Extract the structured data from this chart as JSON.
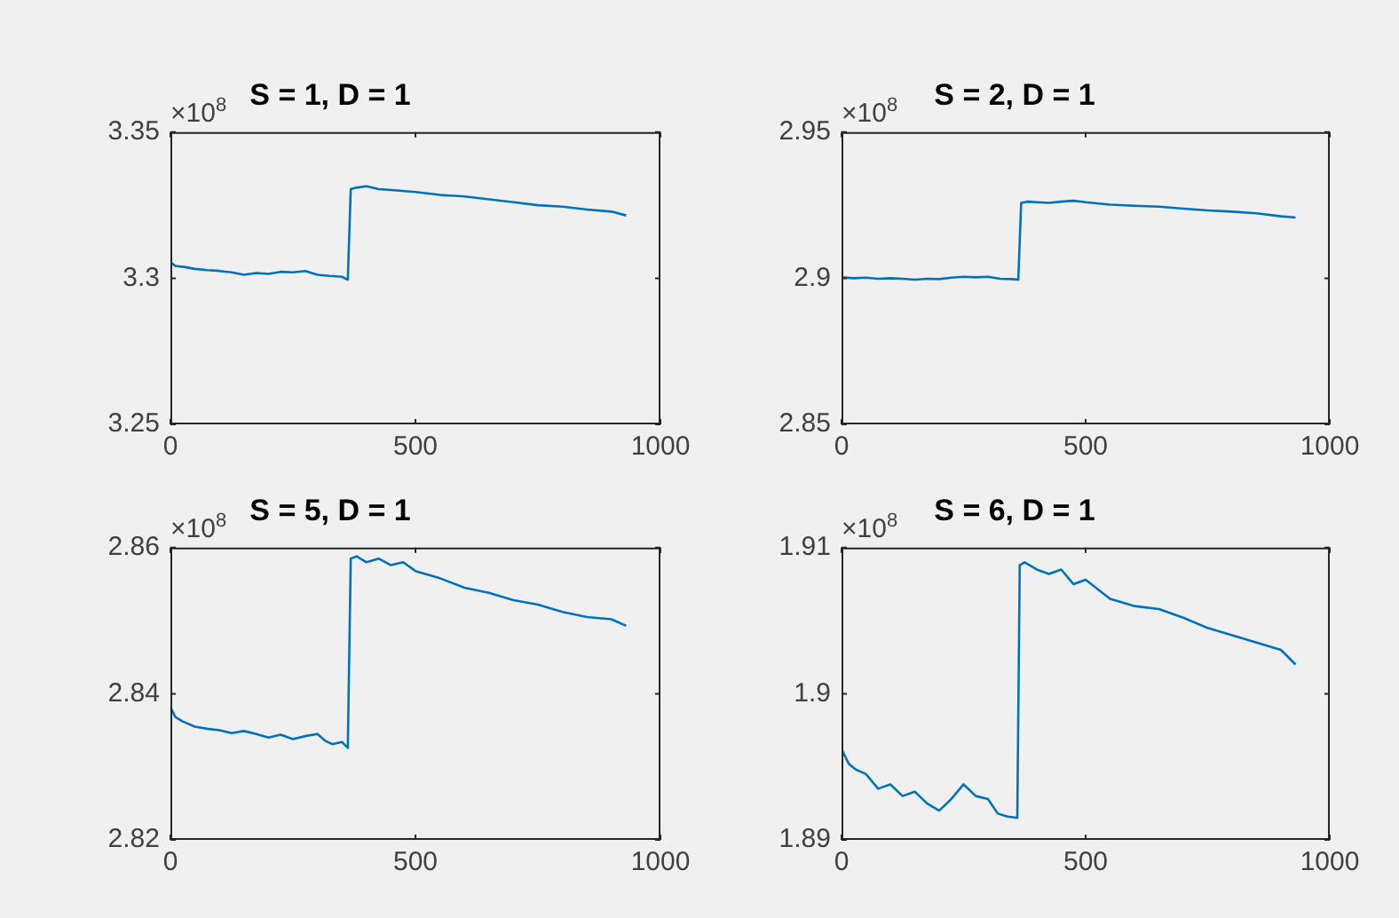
{
  "chart_data": [
    {
      "type": "line",
      "title": "S = 1, D = 1",
      "annotations": [
        "×10$^{8}$"
      ],
      "xlim": [
        0,
        1000
      ],
      "xticks": [
        0,
        500,
        1000
      ],
      "ylim": [
        3.25,
        3.35
      ],
      "yticks": [
        3.25,
        3.3,
        3.35
      ],
      "grid": false,
      "x": [
        0,
        10,
        30,
        50,
        75,
        100,
        125,
        150,
        175,
        200,
        225,
        250,
        275,
        300,
        325,
        350,
        362,
        368,
        380,
        400,
        425,
        450,
        500,
        550,
        600,
        650,
        700,
        750,
        800,
        850,
        900,
        930
      ],
      "series": [
        {
          "color": "#0072bd",
          "values": [
            3.3055,
            3.3042,
            3.3038,
            3.3032,
            3.3028,
            3.3025,
            3.302,
            3.3012,
            3.3018,
            3.3015,
            3.3022,
            3.302,
            3.3025,
            3.3012,
            3.3008,
            3.3005,
            3.2995,
            3.3305,
            3.331,
            3.3315,
            3.3305,
            3.3302,
            3.3295,
            3.3285,
            3.328,
            3.327,
            3.326,
            3.325,
            3.3245,
            3.3235,
            3.3228,
            3.3215
          ]
        }
      ]
    },
    {
      "type": "line",
      "title": "S = 2, D = 1",
      "annotations": [
        "×10$^{8}$"
      ],
      "xlim": [
        0,
        1000
      ],
      "xticks": [
        0,
        500,
        1000
      ],
      "ylim": [
        2.85,
        2.95
      ],
      "yticks": [
        2.85,
        2.9,
        2.95
      ],
      "grid": false,
      "x": [
        0,
        25,
        50,
        75,
        100,
        125,
        150,
        175,
        200,
        225,
        250,
        275,
        300,
        325,
        350,
        362,
        368,
        380,
        400,
        425,
        450,
        475,
        500,
        550,
        600,
        650,
        700,
        750,
        800,
        850,
        900,
        930
      ],
      "series": [
        {
          "color": "#0072bd",
          "values": [
            2.9003,
            2.9,
            2.9002,
            2.8998,
            2.9,
            2.8998,
            2.8995,
            2.8998,
            2.8997,
            2.9002,
            2.9005,
            2.9003,
            2.9005,
            2.8998,
            2.8997,
            2.8995,
            2.9258,
            2.9262,
            2.926,
            2.9258,
            2.9262,
            2.9265,
            2.926,
            2.9252,
            2.9248,
            2.9245,
            2.9238,
            2.9232,
            2.9228,
            2.9222,
            2.9212,
            2.9208
          ]
        }
      ]
    },
    {
      "type": "line",
      "title": "S = 5, D = 1",
      "annotations": [
        "×10$^{8}$"
      ],
      "xlim": [
        0,
        1000
      ],
      "xticks": [
        0,
        500,
        1000
      ],
      "ylim": [
        2.82,
        2.86
      ],
      "yticks": [
        2.82,
        2.84,
        2.86
      ],
      "grid": false,
      "x": [
        0,
        10,
        25,
        50,
        75,
        100,
        125,
        150,
        175,
        200,
        225,
        250,
        275,
        300,
        315,
        330,
        350,
        362,
        368,
        380,
        400,
        425,
        450,
        475,
        500,
        550,
        600,
        650,
        700,
        750,
        800,
        850,
        900,
        930
      ],
      "series": [
        {
          "color": "#0072bd",
          "values": [
            2.8382,
            2.8368,
            2.8362,
            2.8355,
            2.8352,
            2.835,
            2.8346,
            2.8349,
            2.8345,
            2.834,
            2.8344,
            2.8338,
            2.8342,
            2.8345,
            2.8336,
            2.8331,
            2.8334,
            2.8326,
            2.8585,
            2.8588,
            2.858,
            2.8585,
            2.8576,
            2.858,
            2.8568,
            2.8558,
            2.8545,
            2.8538,
            2.8528,
            2.8522,
            2.8512,
            2.8505,
            2.8502,
            2.8493
          ]
        }
      ]
    },
    {
      "type": "line",
      "title": "S = 6, D = 1",
      "annotations": [
        "×10$^{8}$"
      ],
      "xlim": [
        0,
        1000
      ],
      "xticks": [
        0,
        500,
        1000
      ],
      "ylim": [
        1.89,
        1.91
      ],
      "yticks": [
        1.89,
        1.9,
        1.91
      ],
      "grid": false,
      "x": [
        0,
        15,
        30,
        50,
        75,
        100,
        125,
        150,
        175,
        200,
        225,
        250,
        275,
        300,
        320,
        340,
        360,
        365,
        375,
        400,
        425,
        450,
        475,
        500,
        550,
        600,
        650,
        700,
        750,
        800,
        850,
        900,
        930
      ],
      "series": [
        {
          "color": "#0072bd",
          "values": [
            1.8962,
            1.8952,
            1.8948,
            1.8945,
            1.8935,
            1.8938,
            1.893,
            1.8933,
            1.8925,
            1.892,
            1.8928,
            1.8938,
            1.893,
            1.8928,
            1.8918,
            1.8916,
            1.8915,
            1.9088,
            1.909,
            1.9085,
            1.9082,
            1.9085,
            1.9075,
            1.9078,
            1.9065,
            1.906,
            1.9058,
            1.9052,
            1.9045,
            1.904,
            1.9035,
            1.903,
            1.902
          ]
        }
      ]
    }
  ]
}
